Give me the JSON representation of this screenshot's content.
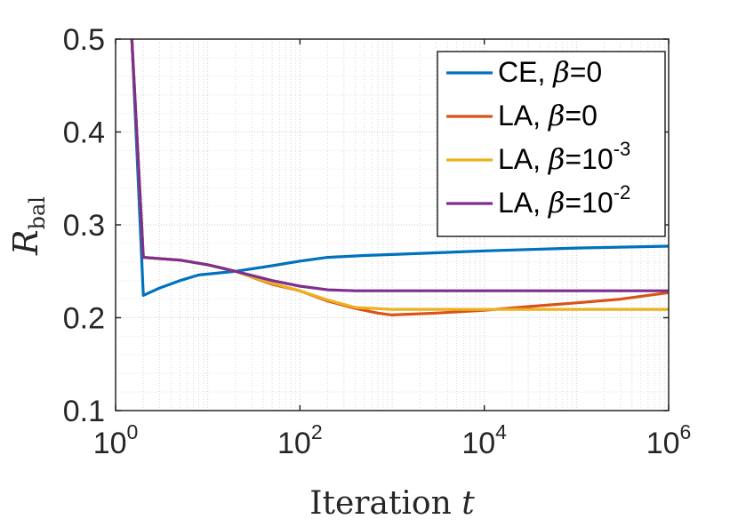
{
  "chart_data": {
    "type": "line",
    "xlabel": "Iteration",
    "xlabel_var": "t",
    "ylabel": "R",
    "ylabel_sub": "bal",
    "xscale": "log",
    "xlim": [
      1,
      1000000
    ],
    "ylim": [
      0.1,
      0.5
    ],
    "x_ticks": [
      {
        "base": "10",
        "exp": "0"
      },
      {
        "base": "10",
        "exp": "2"
      },
      {
        "base": "10",
        "exp": "4"
      },
      {
        "base": "10",
        "exp": "6"
      }
    ],
    "y_ticks": [
      "0.1",
      "0.2",
      "0.3",
      "0.4",
      "0.5"
    ],
    "grid": true,
    "legend_position": "top-right",
    "series": [
      {
        "name": "CE, β=0",
        "label_prefix": "CE, ",
        "label_beta": "β",
        "label_value": "=0",
        "label_exp": "",
        "color": "#0072BD",
        "points": [
          [
            1.5,
            0.5
          ],
          [
            2,
            0.224
          ],
          [
            3,
            0.232
          ],
          [
            5,
            0.24
          ],
          [
            8,
            0.246
          ],
          [
            20,
            0.25
          ],
          [
            50,
            0.256
          ],
          [
            100,
            0.261
          ],
          [
            200,
            0.265
          ],
          [
            500,
            0.267
          ],
          [
            1000,
            0.268
          ],
          [
            10000,
            0.272
          ],
          [
            100000,
            0.275
          ],
          [
            1000000,
            0.277
          ]
        ]
      },
      {
        "name": "LA, β=0",
        "label_prefix": "LA, ",
        "label_beta": "β",
        "label_value": "=0",
        "label_exp": "",
        "color": "#D95319",
        "points": [
          [
            1.5,
            0.5
          ],
          [
            2,
            0.265
          ],
          [
            5,
            0.262
          ],
          [
            10,
            0.257
          ],
          [
            20,
            0.25
          ],
          [
            50,
            0.236
          ],
          [
            100,
            0.229
          ],
          [
            200,
            0.218
          ],
          [
            400,
            0.21
          ],
          [
            700,
            0.205
          ],
          [
            1000,
            0.203
          ],
          [
            3000,
            0.205
          ],
          [
            10000,
            0.208
          ],
          [
            30000,
            0.212
          ],
          [
            100000,
            0.216
          ],
          [
            300000,
            0.22
          ],
          [
            1000000,
            0.227
          ]
        ]
      },
      {
        "name": "LA, β=10^-3",
        "label_prefix": "LA, ",
        "label_beta": "β",
        "label_value": "=10",
        "label_exp": "-3",
        "color": "#EDB120",
        "points": [
          [
            1.5,
            0.5
          ],
          [
            2,
            0.265
          ],
          [
            5,
            0.262
          ],
          [
            10,
            0.257
          ],
          [
            20,
            0.25
          ],
          [
            50,
            0.237
          ],
          [
            100,
            0.229
          ],
          [
            200,
            0.219
          ],
          [
            400,
            0.211
          ],
          [
            1000,
            0.209
          ],
          [
            10000,
            0.209
          ],
          [
            100000,
            0.209
          ],
          [
            1000000,
            0.209
          ]
        ]
      },
      {
        "name": "LA, β=10^-2",
        "label_prefix": "LA, ",
        "label_beta": "β",
        "label_value": "=10",
        "label_exp": "-2",
        "color": "#7E2F8E",
        "points": [
          [
            1.5,
            0.5
          ],
          [
            2,
            0.265
          ],
          [
            5,
            0.262
          ],
          [
            10,
            0.257
          ],
          [
            20,
            0.25
          ],
          [
            50,
            0.24
          ],
          [
            100,
            0.234
          ],
          [
            200,
            0.23
          ],
          [
            400,
            0.229
          ],
          [
            1000,
            0.229
          ],
          [
            10000,
            0.229
          ],
          [
            100000,
            0.229
          ],
          [
            1000000,
            0.229
          ]
        ]
      }
    ]
  }
}
